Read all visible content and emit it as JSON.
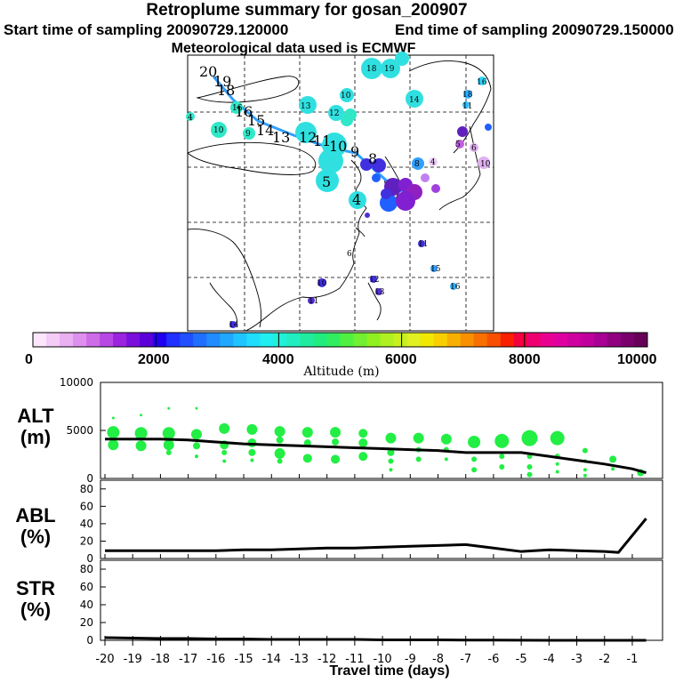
{
  "header": {
    "title": "Retroplume summary for gosan_200907",
    "start_label": "Start time of sampling 20090729.120000",
    "end_label": "End time of sampling 20090729.150000",
    "met_label": "Meteorological data used is ECMWF"
  },
  "colorbar": {
    "ticks": [
      "0",
      "2000",
      "4000",
      "6000",
      "8000",
      "10000"
    ],
    "unit_label": "Altitude (m)"
  },
  "map_points": [
    {
      "label": "20",
      "color": "#40e0a0"
    },
    {
      "label": "19",
      "color": "#40e0a0"
    },
    {
      "label": "18",
      "color": "#40e0a0"
    },
    {
      "label": "16",
      "color": "#40e0a0"
    },
    {
      "label": "15",
      "color": "#40e0a0"
    },
    {
      "label": "14",
      "color": "#40e0a0"
    },
    {
      "label": "13",
      "color": "#40e0a0"
    },
    {
      "label": "12",
      "color": "#40e0a0"
    },
    {
      "label": "11",
      "color": "#40e0a0"
    },
    {
      "label": "10",
      "color": "#30e8c8"
    },
    {
      "label": "9",
      "color": "#30e8c8"
    },
    {
      "label": "8",
      "color": "#2060ff"
    },
    {
      "label": "7",
      "color": "#4030e0"
    },
    {
      "label": "6",
      "color": "#5030d0"
    },
    {
      "label": "5",
      "color": "#8020d0"
    },
    {
      "label": "4",
      "color": "#a040e0"
    },
    {
      "label": "3",
      "color": "#c060e0"
    },
    {
      "label": "2",
      "color": "#6020c0"
    },
    {
      "label": "1",
      "color": "#9020c0"
    }
  ],
  "chart_data": [
    {
      "type": "line",
      "name": "ALT",
      "ylabel": "ALT (m)",
      "ylim": [
        0,
        10000
      ],
      "yticks": [
        "10000",
        "5000",
        "0"
      ],
      "x": [
        -20,
        -19,
        -18,
        -17,
        -16,
        -15,
        -14,
        -13,
        -12,
        -11,
        -10,
        -9,
        -8,
        -7,
        -6,
        -5,
        -4,
        -3,
        -2,
        -1,
        -0.5
      ],
      "series": [
        {
          "name": "mean altitude",
          "values": [
            4100,
            4100,
            4100,
            4000,
            3800,
            3600,
            3500,
            3400,
            3300,
            3200,
            3100,
            3000,
            2900,
            2700,
            2700,
            2700,
            2300,
            1900,
            1500,
            1000,
            600
          ]
        }
      ],
      "bubbles": [
        {
          "x": -19.7,
          "y": 6300,
          "r": 1.5
        },
        {
          "x": -19.7,
          "y": 4800,
          "r": 7
        },
        {
          "x": -19.7,
          "y": 3500,
          "r": 6
        },
        {
          "x": -18.7,
          "y": 6600,
          "r": 1.5
        },
        {
          "x": -18.7,
          "y": 4700,
          "r": 7
        },
        {
          "x": -18.7,
          "y": 3400,
          "r": 6
        },
        {
          "x": -17.7,
          "y": 7300,
          "r": 1.5
        },
        {
          "x": -17.7,
          "y": 4700,
          "r": 7
        },
        {
          "x": -17.7,
          "y": 3500,
          "r": 6
        },
        {
          "x": -17.7,
          "y": 2700,
          "r": 3
        },
        {
          "x": -16.7,
          "y": 7300,
          "r": 1.5
        },
        {
          "x": -16.7,
          "y": 4600,
          "r": 6
        },
        {
          "x": -16.7,
          "y": 3400,
          "r": 4
        },
        {
          "x": -16.7,
          "y": 2300,
          "r": 2
        },
        {
          "x": -15.7,
          "y": 5200,
          "r": 6
        },
        {
          "x": -15.7,
          "y": 3500,
          "r": 5
        },
        {
          "x": -15.7,
          "y": 2700,
          "r": 3
        },
        {
          "x": -15.7,
          "y": 1800,
          "r": 2
        },
        {
          "x": -14.7,
          "y": 5100,
          "r": 6
        },
        {
          "x": -14.7,
          "y": 3700,
          "r": 5
        },
        {
          "x": -14.7,
          "y": 2700,
          "r": 4
        },
        {
          "x": -14.7,
          "y": 1900,
          "r": 2
        },
        {
          "x": -13.7,
          "y": 4900,
          "r": 6
        },
        {
          "x": -13.7,
          "y": 4000,
          "r": 4
        },
        {
          "x": -13.7,
          "y": 2600,
          "r": 6
        },
        {
          "x": -13.7,
          "y": 1800,
          "r": 3
        },
        {
          "x": -12.7,
          "y": 4800,
          "r": 6
        },
        {
          "x": -12.7,
          "y": 3700,
          "r": 4
        },
        {
          "x": -12.7,
          "y": 2100,
          "r": 5
        },
        {
          "x": -11.7,
          "y": 4800,
          "r": 6
        },
        {
          "x": -11.7,
          "y": 3800,
          "r": 4
        },
        {
          "x": -11.7,
          "y": 2000,
          "r": 5
        },
        {
          "x": -10.7,
          "y": 4700,
          "r": 5
        },
        {
          "x": -10.7,
          "y": 3700,
          "r": 5
        },
        {
          "x": -10.7,
          "y": 2300,
          "r": 5
        },
        {
          "x": -9.7,
          "y": 4200,
          "r": 6
        },
        {
          "x": -9.7,
          "y": 2700,
          "r": 4
        },
        {
          "x": -9.7,
          "y": 1800,
          "r": 3
        },
        {
          "x": -9.7,
          "y": 900,
          "r": 2
        },
        {
          "x": -8.7,
          "y": 4200,
          "r": 6
        },
        {
          "x": -8.7,
          "y": 3000,
          "r": 3
        },
        {
          "x": -8.7,
          "y": 2000,
          "r": 3
        },
        {
          "x": -7.7,
          "y": 4100,
          "r": 6
        },
        {
          "x": -7.7,
          "y": 3000,
          "r": 3
        },
        {
          "x": -7.7,
          "y": 2000,
          "r": 2
        },
        {
          "x": -6.7,
          "y": 3800,
          "r": 7
        },
        {
          "x": -6.7,
          "y": 2000,
          "r": 3
        },
        {
          "x": -6.7,
          "y": 900,
          "r": 3
        },
        {
          "x": -5.7,
          "y": 3900,
          "r": 8
        },
        {
          "x": -5.7,
          "y": 2300,
          "r": 3
        },
        {
          "x": -5.7,
          "y": 1200,
          "r": 3
        },
        {
          "x": -4.7,
          "y": 4200,
          "r": 9
        },
        {
          "x": -4.7,
          "y": 2300,
          "r": 3
        },
        {
          "x": -4.7,
          "y": 1200,
          "r": 3
        },
        {
          "x": -4.7,
          "y": 400,
          "r": 3
        },
        {
          "x": -3.7,
          "y": 4200,
          "r": 8
        },
        {
          "x": -3.7,
          "y": 2300,
          "r": 3
        },
        {
          "x": -3.7,
          "y": 1500,
          "r": 2
        },
        {
          "x": -3.7,
          "y": 700,
          "r": 2
        },
        {
          "x": -2.7,
          "y": 2900,
          "r": 3
        },
        {
          "x": -2.7,
          "y": 1800,
          "r": 2
        },
        {
          "x": -2.7,
          "y": 900,
          "r": 2
        },
        {
          "x": -2.7,
          "y": 300,
          "r": 2
        },
        {
          "x": -1.7,
          "y": 2000,
          "r": 4
        },
        {
          "x": -1.7,
          "y": 1000,
          "r": 2
        },
        {
          "x": -0.7,
          "y": 600,
          "r": 4
        }
      ]
    },
    {
      "type": "line",
      "name": "ABL",
      "ylabel": "ABL (%)",
      "ylim": [
        0,
        90
      ],
      "yticks": [
        "80",
        "60",
        "40",
        "20",
        "0"
      ],
      "x": [
        -20,
        -19,
        -18,
        -17,
        -16,
        -15,
        -14,
        -13,
        -12,
        -11,
        -10,
        -9,
        -8,
        -7,
        -6,
        -5,
        -4,
        -3,
        -2,
        -1.5,
        -0.5
      ],
      "series": [
        {
          "name": "ABL fraction",
          "values": [
            9,
            9,
            9,
            9,
            9,
            10,
            10,
            11,
            12,
            12,
            13,
            14,
            15,
            16,
            12,
            8,
            10,
            9,
            8,
            7,
            46
          ]
        }
      ]
    },
    {
      "type": "line",
      "name": "STR",
      "ylabel": "STR (%)",
      "ylim": [
        0,
        90
      ],
      "yticks": [
        "80",
        "60",
        "40",
        "20",
        "0"
      ],
      "x": [
        -20,
        -19,
        -18,
        -17,
        -16,
        -15,
        -14,
        -13,
        -12,
        -11,
        -10,
        -9,
        -8,
        -7,
        -6,
        -5,
        -4,
        -3,
        -2,
        -1,
        -0.5
      ],
      "series": [
        {
          "name": "stratospheric fraction",
          "values": [
            3,
            2.5,
            2,
            2,
            1.5,
            1.5,
            1,
            1,
            1,
            1,
            0.5,
            0.5,
            0.5,
            0.3,
            0.2,
            0.1,
            0,
            0,
            0,
            0,
            0
          ]
        }
      ]
    }
  ],
  "xaxis": {
    "ticks": [
      "-20",
      "-19",
      "-18",
      "-17",
      "-16",
      "-15",
      "-14",
      "-13",
      "-12",
      "-11",
      "-10",
      "-9",
      "-8",
      "-7",
      "-6",
      "-5",
      "-4",
      "-3",
      "-2",
      "-1"
    ],
    "label": "Travel time (days)"
  }
}
